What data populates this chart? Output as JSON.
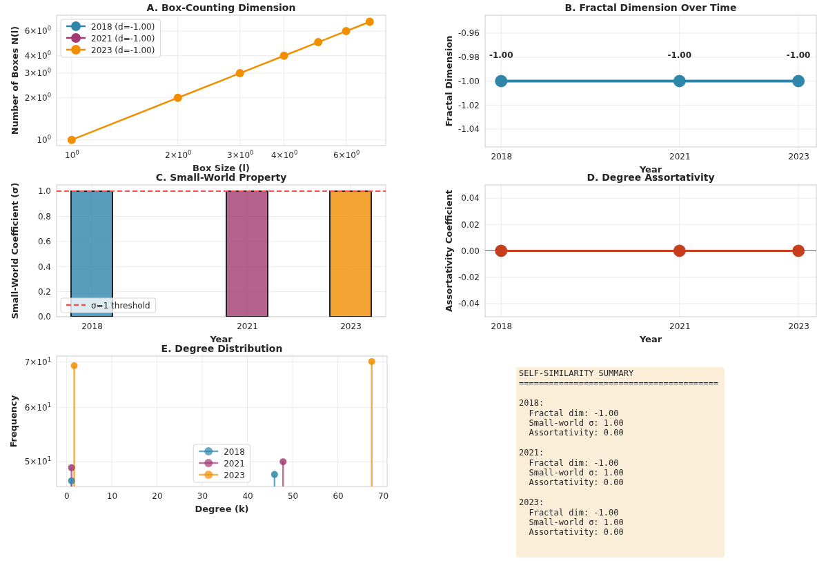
{
  "chart_data": [
    {
      "type": "line",
      "title": "A. Box-Counting Dimension",
      "xlabel": "Box Size (l)",
      "ylabel": "Number of Boxes N(l)",
      "log": "xy",
      "grid": true,
      "legend": "top left",
      "marker": "circle",
      "line_style": "solid",
      "x": [
        1,
        2,
        3,
        4,
        5,
        6,
        7
      ],
      "xlim": [
        0.906,
        7.77
      ],
      "ylim": [
        0.91,
        7.8
      ],
      "xticks": [
        {
          "value": 1,
          "label": "10$^{0}$"
        },
        {
          "value": 2,
          "label": "2×10$^{0}$"
        },
        {
          "value": 3,
          "label": "3×10$^{0}$"
        },
        {
          "value": 4,
          "label": "4×10$^{0}$"
        },
        {
          "value": 6,
          "label": "6×10$^{0}$"
        }
      ],
      "yticks": [
        {
          "value": 1,
          "label": "10$^{0}$"
        },
        {
          "value": 2,
          "label": "2×10$^{0}$"
        },
        {
          "value": 3,
          "label": "3×10$^{0}$"
        },
        {
          "value": 4,
          "label": "4×10$^{0}$"
        },
        {
          "value": 6,
          "label": "6×10$^{0}$"
        }
      ],
      "series": [
        {
          "name": "2018 (d=-1.00)",
          "color": "#2e86ab",
          "values": [
            null,
            null,
            null,
            null,
            null,
            null,
            null
          ]
        },
        {
          "name": "2021 (d=-1.00)",
          "color": "#a23b72",
          "values": [
            null,
            null,
            null,
            null,
            null,
            null,
            null
          ]
        },
        {
          "name": "2023 (d=-1.00)",
          "color": "#f18f01",
          "values": [
            1,
            2,
            3,
            4,
            5,
            6,
            7
          ]
        }
      ]
    },
    {
      "type": "line",
      "title": "B. Fractal Dimension Over Time",
      "xlabel": "Year",
      "ylabel": "Fractal Dimension",
      "grid": true,
      "marker": "circle",
      "line_style": "solid",
      "x": [
        2018,
        2021,
        2023
      ],
      "xlim": [
        2017.73,
        2023.3
      ],
      "xticks": [
        2018,
        2021,
        2023
      ],
      "ylim": [
        -1.055,
        -0.945
      ],
      "yticks": [
        -1.04,
        -1.02,
        {
          "value": -1,
          "label": "-1.00"
        },
        -0.98,
        -0.96
      ],
      "series": [
        {
          "color": "#2e86ab",
          "values": [
            -1,
            -1,
            -1
          ],
          "value_labels": [
            "-1.00",
            "-1.00",
            "-1.00"
          ]
        }
      ]
    },
    {
      "type": "bar",
      "title": "C. Small-World Property",
      "xlabel": "Year",
      "ylabel": "Small-World Coefficient (σ)",
      "grid": true,
      "legend": "bottom left",
      "x": [
        2018,
        2021,
        2023
      ],
      "xlim": [
        2017.32,
        2023.68
      ],
      "xticks": [
        2018,
        2021,
        2023
      ],
      "ylim": [
        0,
        1.05
      ],
      "yticks": [
        {
          "value": 0,
          "label": "0.0"
        },
        {
          "value": 0.2,
          "label": "0.2"
        },
        {
          "value": 0.4,
          "label": "0.4"
        },
        {
          "value": 0.6,
          "label": "0.6"
        },
        {
          "value": 0.8,
          "label": "0.8"
        },
        {
          "value": 1,
          "label": "1.0"
        }
      ],
      "values": [
        1,
        1,
        1
      ],
      "colors": [
        "#2e86ab",
        "#a23b72",
        "#f18f01"
      ],
      "ref_lines": [
        {
          "axis": "y",
          "value": 1,
          "label": "σ=1 threshold",
          "color": "#ff4d4d",
          "line_style": "dashed"
        }
      ]
    },
    {
      "type": "line",
      "title": "D. Degree Assortativity",
      "xlabel": "Year",
      "ylabel": "Assortativity Coefficient",
      "grid": true,
      "marker": "circle",
      "line_style": "solid",
      "x": [
        2018,
        2021,
        2023
      ],
      "xlim": [
        2017.73,
        2023.3
      ],
      "xticks": [
        2018,
        2021,
        2023
      ],
      "ylim": [
        -0.05,
        0.05
      ],
      "yticks": [
        -0.04,
        -0.02,
        {
          "value": 0,
          "label": "0.00"
        },
        0.02,
        0.04
      ],
      "series": [
        {
          "color": "#c73e1d",
          "values": [
            0,
            0,
            0
          ]
        }
      ],
      "ref_lines": [
        {
          "axis": "y",
          "value": 0,
          "color": "#555555",
          "line_style": "solid"
        }
      ]
    },
    {
      "type": "lollipop",
      "title": "E. Degree Distribution",
      "xlabel": "Degree (k)",
      "ylabel": "Frequency",
      "log": "y",
      "grid": true,
      "legend": "bottom",
      "marker": "circle",
      "xlim": [
        -2.2,
        70.9
      ],
      "xticks": [
        0,
        10,
        20,
        30,
        40,
        50,
        60,
        70
      ],
      "ylim": [
        46,
        71.4
      ],
      "yticks": [
        {
          "value": 50,
          "label": "5×10$^{1}$"
        },
        {
          "value": 60,
          "label": "6×10$^{1}$"
        },
        {
          "value": 70,
          "label": "7×10$^{1}$"
        }
      ],
      "series": [
        {
          "name": "2018",
          "color": "#2e86ab",
          "x": [
            1.1,
            46.0
          ],
          "values": [
            46.9,
            47.9
          ]
        },
        {
          "name": "2021",
          "color": "#a23b72",
          "x": [
            1.1,
            47.9
          ],
          "values": [
            49.0,
            50.0
          ]
        },
        {
          "name": "2023",
          "color": "#f18f01",
          "x": [
            1.7,
            67.5
          ],
          "values": [
            69.1,
            70.1
          ]
        }
      ]
    },
    {
      "type": "other",
      "title": "SELF-SIMILARITY SUMMARY",
      "annotations": [
        "========================================",
        "2018:\n  Fractal dim: -1.00\n  Small-world σ: 1.00\n  Assortativity: 0.00",
        "2021:\n  Fractal dim: -1.00\n  Small-world σ: 1.00\n  Assortativity: 0.00",
        "2023:\n  Fractal dim: -1.00\n  Small-world σ: 1.00\n  Assortativity: 0.00"
      ]
    }
  ]
}
